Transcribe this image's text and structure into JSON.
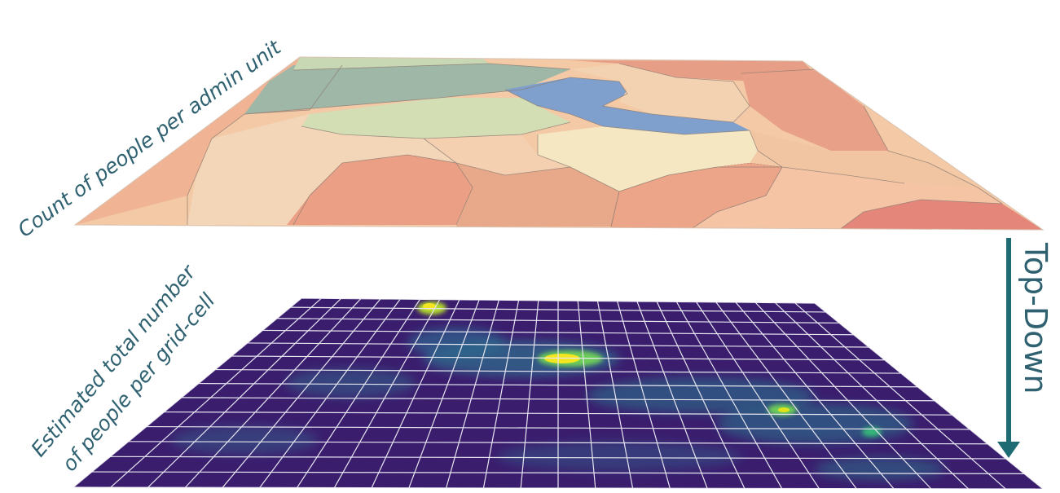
{
  "labels": {
    "admin_layer": "Count of people per admin unit",
    "grid_layer_line1": "Estimated total number",
    "grid_layer_line2": "of people per grid-cell",
    "direction": "Top-Down"
  },
  "colors": {
    "label_text": "#2f6170",
    "arrow": "#1f6b73",
    "grid_lines": "#e6e6f0",
    "viridis_low": "#3b1d6e",
    "viridis_high": "#f4e61e"
  },
  "admin_region_colors": [
    "#9fb7a6",
    "#c1d2ae",
    "#d2ddb3",
    "#7f9fcc",
    "#f3d2b2",
    "#f6e7c3",
    "#f0c29d",
    "#e8a282",
    "#eda487",
    "#e58f7a",
    "#f7c7a6",
    "#f3b192"
  ]
}
